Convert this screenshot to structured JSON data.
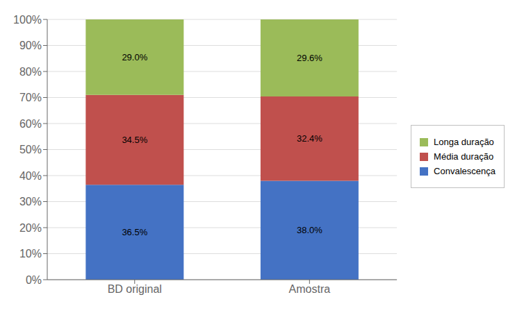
{
  "chart_data": {
    "type": "bar",
    "stacked": true,
    "categories": [
      "BD original",
      "Amostra"
    ],
    "series": [
      {
        "name": "Convalescença",
        "color": "#4472C4",
        "values": [
          36.5,
          38.0
        ],
        "value_labels": [
          "36.5%",
          "38.0%"
        ]
      },
      {
        "name": "Média duração",
        "color": "#C0504D",
        "values": [
          34.5,
          32.4
        ],
        "value_labels": [
          "34.5%",
          "32.4%"
        ]
      },
      {
        "name": "Longa duração",
        "color": "#9BBB59",
        "values": [
          29.0,
          29.6
        ],
        "value_labels": [
          "29.0%",
          "29.6%"
        ]
      }
    ],
    "ylim": [
      0,
      100
    ],
    "yticks": [
      {
        "value": 0,
        "label": "0%"
      },
      {
        "value": 10,
        "label": "10%"
      },
      {
        "value": 20,
        "label": "20%"
      },
      {
        "value": 30,
        "label": "30%"
      },
      {
        "value": 40,
        "label": "40%"
      },
      {
        "value": 50,
        "label": "50%"
      },
      {
        "value": 60,
        "label": "60%"
      },
      {
        "value": 70,
        "label": "70%"
      },
      {
        "value": 80,
        "label": "80%"
      },
      {
        "value": 90,
        "label": "90%"
      },
      {
        "value": 100,
        "label": "100%"
      }
    ],
    "grid": true,
    "legend": "right",
    "data_labels": true
  }
}
